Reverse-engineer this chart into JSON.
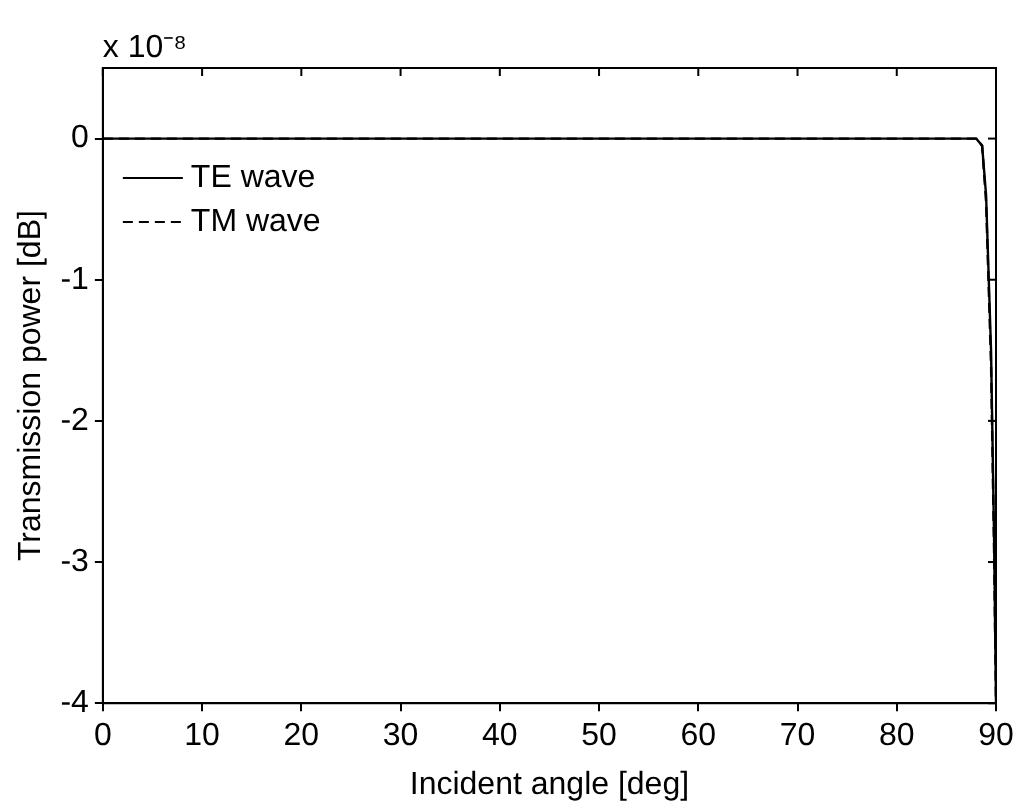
{
  "chart_data": {
    "type": "line",
    "xlabel": "Incident angle [deg]",
    "ylabel": "Transmission power [dB]",
    "annotations": [
      "x 10⁻⁸"
    ],
    "xlim": [
      0,
      90
    ],
    "xticks": [
      0,
      10,
      20,
      30,
      40,
      50,
      60,
      70,
      80,
      90
    ],
    "ylim": [
      -4,
      0.5
    ],
    "yticks": [
      -4,
      -3,
      -2,
      -1,
      0
    ],
    "x": [
      0,
      10,
      20,
      30,
      40,
      50,
      60,
      70,
      80,
      85,
      88,
      88.6,
      89,
      89.5,
      89.8,
      90
    ],
    "series": [
      {
        "name": "TE wave",
        "color": "#000000",
        "line_style": "solid",
        "values": [
          0,
          0,
          0,
          0,
          0,
          0,
          0,
          0,
          0,
          0,
          0,
          -0.05,
          -0.4,
          -1.5,
          -2.8,
          -4
        ]
      },
      {
        "name": "TM wave",
        "color": "#000000",
        "line_style": "dashed",
        "values": [
          0,
          0,
          0,
          0,
          0,
          0,
          0,
          0,
          0,
          0,
          0,
          -0.05,
          -0.45,
          -1.6,
          -2.9,
          -4
        ]
      }
    ],
    "grid": false,
    "legend": "top left",
    "marker": "none"
  }
}
